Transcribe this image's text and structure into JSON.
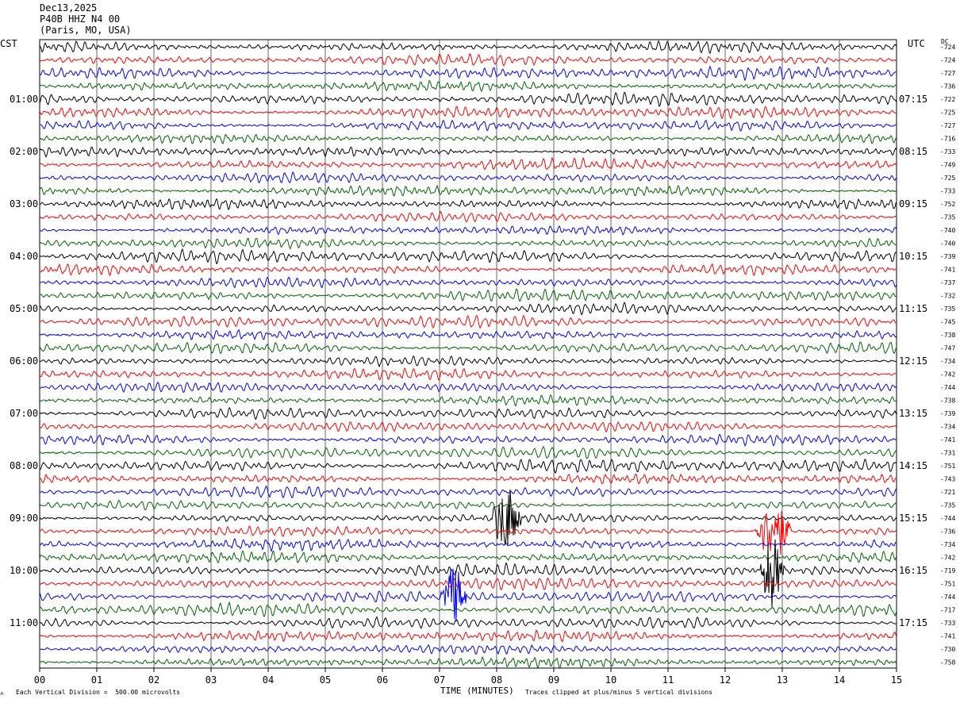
{
  "header": {
    "date": "Dec13,2025",
    "station": "P40B HHZ N4 00",
    "location": "(Paris, MO, USA)"
  },
  "left_tz": "CST",
  "right_tz": "UTC",
  "dc_label": "DC",
  "footer": {
    "division_note": "Each Vertical Division =  500.00 microvolts",
    "xlabel": "TIME (MINUTES)",
    "clip_note": "Traces clipped at plus/minus 5 vertical divisions"
  },
  "colors": {
    "trace_cycle": [
      "#000000",
      "#ff0000",
      "#0000ff",
      "#006400"
    ],
    "grid": "#000000",
    "background": "#ffffff"
  },
  "chart_data": {
    "type": "line",
    "title": "P40B HHZ N4 00",
    "xlabel": "TIME (MINUTES)",
    "xlim": [
      0,
      15
    ],
    "x_ticks": [
      "00",
      "01",
      "02",
      "03",
      "04",
      "05",
      "06",
      "07",
      "08",
      "09",
      "10",
      "11",
      "12",
      "13",
      "14",
      "15"
    ],
    "left_time_labels": [
      "01:00",
      "02:00",
      "03:00",
      "04:00",
      "05:00",
      "06:00",
      "07:00",
      "08:00",
      "09:00",
      "10:00",
      "11:00"
    ],
    "right_time_labels": [
      "07:15",
      "08:15",
      "09:15",
      "10:15",
      "11:15",
      "12:15",
      "13:15",
      "14:15",
      "15:15",
      "16:15",
      "17:15"
    ],
    "trace_count": 48,
    "traces_per_hour": 4,
    "first_labeled_trace_index": 4,
    "dc_offsets": [
      "-724",
      "-724",
      "-727",
      "-736",
      "-722",
      "-725",
      "-727",
      "-716",
      "-733",
      "-749",
      "-725",
      "-733",
      "-752",
      "-735",
      "-740",
      "-740",
      "-739",
      "-741",
      "-737",
      "-732",
      "-735",
      "-745",
      "-738",
      "-747",
      "-734",
      "-742",
      "-744",
      "-738",
      "-739",
      "-734",
      "-741",
      "-731",
      "-751",
      "-743",
      "-721",
      "-735",
      "-744",
      "-736",
      "-734",
      "-742",
      "-719",
      "-751",
      "-744",
      "-717",
      "-733",
      "-741",
      "-730",
      "-758"
    ],
    "events": [
      {
        "trace_index": 36,
        "start_min": 7.9,
        "end_min": 8.8,
        "amplitude": 2.4
      },
      {
        "trace_index": 37,
        "start_min": 12.5,
        "end_min": 13.6,
        "amplitude": 2.2
      },
      {
        "trace_index": 40,
        "start_min": 12.6,
        "end_min": 13.3,
        "amplitude": 2.6
      },
      {
        "trace_index": 42,
        "start_min": 7.0,
        "end_min": 7.8,
        "amplitude": 2.2
      }
    ]
  }
}
